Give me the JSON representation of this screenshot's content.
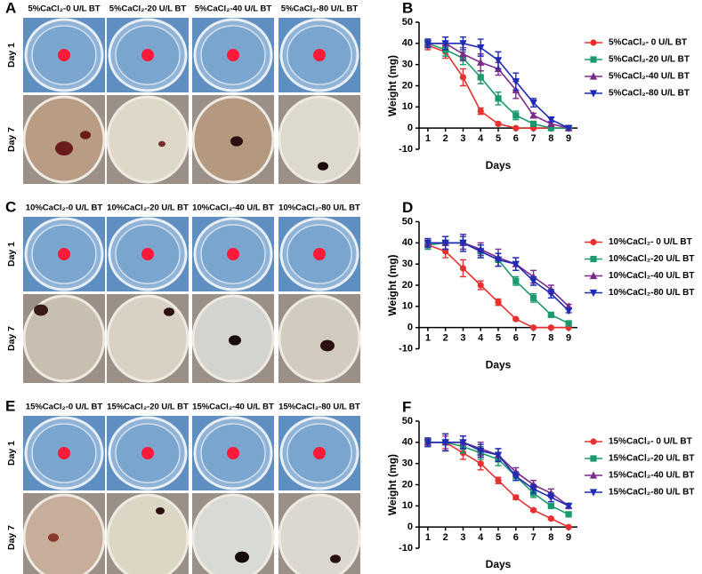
{
  "panels": [
    {
      "letter": "A",
      "columns": [
        "5%CaCl₂-0 U/L BT",
        "5%CaCl₂-20 U/L BT",
        "5%CaCl₂-40 U/L BT",
        "5%CaCl₂-80 U/L BT"
      ],
      "rows": [
        "Day 1",
        "Day 7"
      ]
    },
    {
      "letter": "C",
      "columns": [
        "10%CaCl₂-0 U/L BT",
        "10%CaCl₂-20 U/L BT",
        "10%CaCl₂-40 U/L BT",
        "10%CaCl₂-80 U/L BT"
      ],
      "rows": [
        "Day 1",
        "Day 7"
      ]
    },
    {
      "letter": "E",
      "columns": [
        "15%CaCl₂-0 U/L BT",
        "15%CaCl₂-20 U/L BT",
        "15%CaCl₂-40 U/L BT",
        "15%CaCl₂-80 U/L BT"
      ],
      "rows": [
        "Day 1",
        "Day 7"
      ]
    }
  ],
  "chart_data": [
    {
      "type": "line",
      "panel_label": "B",
      "xlabel": "Days",
      "ylabel": "Weight (mg)",
      "x": [
        1,
        2,
        3,
        4,
        5,
        6,
        7,
        8,
        9
      ],
      "xlim": [
        0.5,
        9.5
      ],
      "xticks": [
        1,
        2,
        3,
        4,
        5,
        6,
        7,
        8,
        9
      ],
      "ylim": [
        -10,
        50
      ],
      "yticks": [
        -10,
        0,
        10,
        20,
        30,
        40,
        50
      ],
      "series": [
        {
          "name": "5%CaCl₂- 0 U/L BT",
          "color": "#e8312f",
          "marker": "circle",
          "values": [
            39,
            36,
            24,
            8,
            2,
            0,
            0,
            0,
            0
          ],
          "errors": [
            2,
            3,
            4,
            1.5,
            0.5,
            0,
            0,
            0,
            0
          ]
        },
        {
          "name": "5%CaCl₂-20 U/L BT",
          "color": "#1a9a6c",
          "marker": "square",
          "values": [
            40,
            37,
            33,
            24,
            14,
            6,
            2,
            0,
            0
          ],
          "errors": [
            2,
            3,
            3,
            3,
            3,
            2,
            1,
            0,
            0
          ]
        },
        {
          "name": "5%CaCl₂-40 U/L BT",
          "color": "#7b2a8c",
          "marker": "triangle-up",
          "values": [
            40,
            40,
            35,
            31,
            28,
            18,
            6,
            2,
            0
          ],
          "errors": [
            2,
            3,
            3,
            4,
            3,
            4,
            1,
            1,
            0
          ]
        },
        {
          "name": "5%CaCl₂-80 U/L BT",
          "color": "#1f2bb5",
          "marker": "triangle-down",
          "values": [
            40,
            40,
            40,
            38,
            32,
            22,
            12,
            4,
            0
          ],
          "errors": [
            2,
            3,
            3,
            4,
            4,
            4,
            2,
            1,
            0
          ]
        }
      ]
    },
    {
      "type": "line",
      "panel_label": "D",
      "xlabel": "Days",
      "ylabel": "Weight (mg)",
      "x": [
        1,
        2,
        3,
        4,
        5,
        6,
        7,
        8,
        9
      ],
      "xlim": [
        0.5,
        9.5
      ],
      "xticks": [
        1,
        2,
        3,
        4,
        5,
        6,
        7,
        8,
        9
      ],
      "ylim": [
        -10,
        50
      ],
      "yticks": [
        -10,
        0,
        10,
        20,
        30,
        40,
        50
      ],
      "series": [
        {
          "name": "10%CaCl₂- 0 U/L BT",
          "color": "#e8312f",
          "marker": "circle",
          "values": [
            39,
            36,
            28,
            20,
            12,
            4,
            0,
            0,
            0
          ],
          "errors": [
            2,
            3,
            4,
            2,
            1.5,
            0.5,
            0,
            0,
            0
          ]
        },
        {
          "name": "10%CaCl₂-20 U/L BT",
          "color": "#1a9a6c",
          "marker": "square",
          "values": [
            39,
            40,
            40,
            36,
            32,
            22,
            14,
            6,
            2
          ],
          "errors": [
            2,
            3,
            3,
            3,
            3,
            2,
            2,
            1,
            0.5
          ]
        },
        {
          "name": "10%CaCl₂-40 U/L BT",
          "color": "#7b2a8c",
          "marker": "triangle-up",
          "values": [
            40,
            40,
            40,
            37,
            33,
            30,
            24,
            18,
            10
          ],
          "errors": [
            2,
            3,
            3,
            3,
            4,
            3,
            3,
            2,
            1
          ]
        },
        {
          "name": "10%CaCl₂-80 U/L BT",
          "color": "#1f2bb5",
          "marker": "triangle-down",
          "values": [
            40,
            40,
            40,
            36,
            32,
            30,
            22,
            16,
            8
          ],
          "errors": [
            2,
            3,
            4,
            3,
            3,
            3,
            2,
            2,
            1
          ]
        }
      ]
    },
    {
      "type": "line",
      "panel_label": "F",
      "xlabel": "Days",
      "ylabel": "Weight (mg)",
      "x": [
        1,
        2,
        3,
        4,
        5,
        6,
        7,
        8,
        9
      ],
      "xlim": [
        0.5,
        9.5
      ],
      "xticks": [
        1,
        2,
        3,
        4,
        5,
        6,
        7,
        8,
        9
      ],
      "ylim": [
        -10,
        50
      ],
      "yticks": [
        -10,
        0,
        10,
        20,
        30,
        40,
        50
      ],
      "series": [
        {
          "name": "15%CaCl₂- 0 U/L BT",
          "color": "#e8312f",
          "marker": "circle",
          "values": [
            40,
            40,
            35,
            30,
            22,
            14,
            8,
            4,
            0
          ],
          "errors": [
            2,
            3,
            3,
            3,
            1.5,
            1,
            0.5,
            0.5,
            0
          ]
        },
        {
          "name": "15%CaCl₂-20 U/L BT",
          "color": "#1a9a6c",
          "marker": "square",
          "values": [
            40,
            40,
            38,
            35,
            32,
            24,
            16,
            10,
            6
          ],
          "errors": [
            2,
            4,
            3,
            3,
            3,
            2,
            2,
            1,
            0.5
          ]
        },
        {
          "name": "15%CaCl₂-40 U/L BT",
          "color": "#7b2a8c",
          "marker": "triangle-up",
          "values": [
            40,
            40,
            40,
            37,
            34,
            26,
            20,
            16,
            10
          ],
          "errors": [
            2,
            4,
            3,
            3,
            3,
            2,
            2,
            2,
            1
          ]
        },
        {
          "name": "15%CaCl₂-80 U/L BT",
          "color": "#1f2bb5",
          "marker": "triangle-down",
          "values": [
            40,
            40,
            40,
            36,
            34,
            24,
            18,
            14,
            10
          ],
          "errors": [
            2,
            4,
            3,
            3,
            3,
            2,
            2,
            2,
            1
          ]
        }
      ]
    }
  ]
}
